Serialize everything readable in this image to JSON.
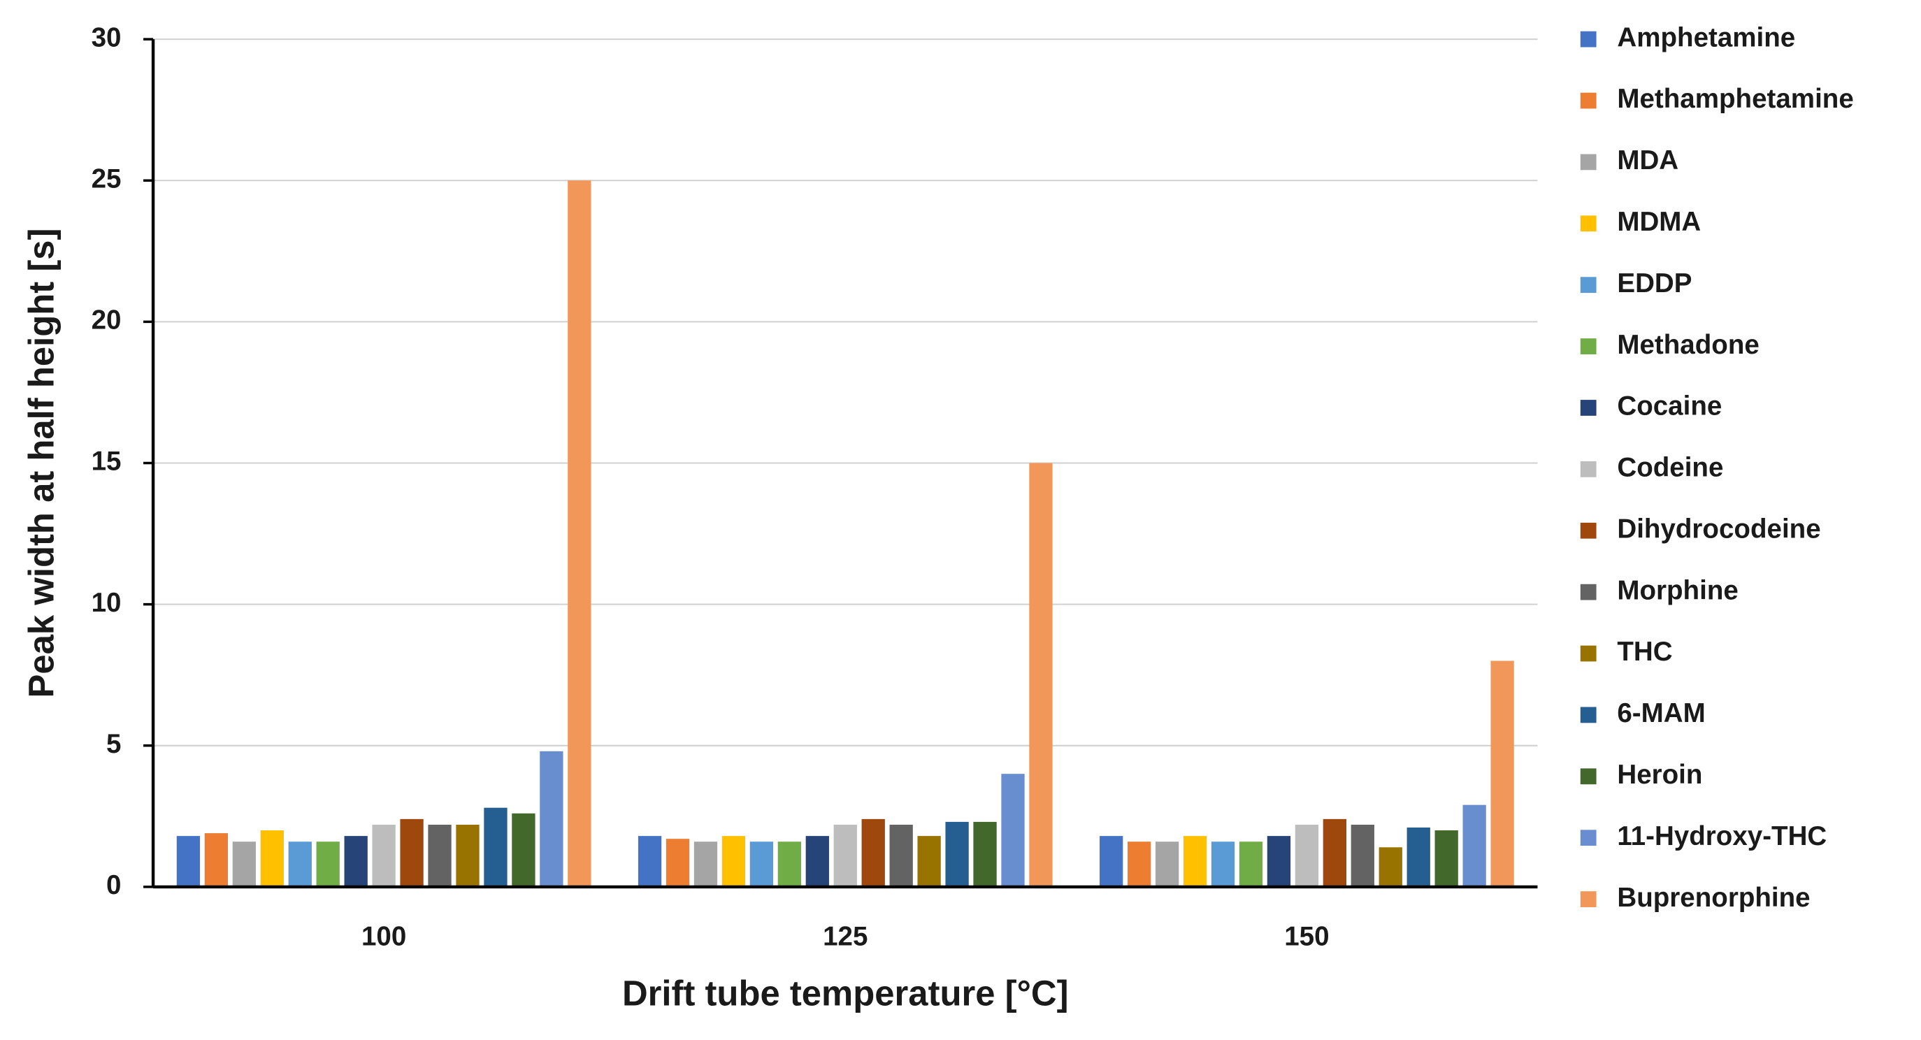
{
  "chart_data": {
    "type": "bar",
    "xlabel": "Drift tube temperature [°C]",
    "ylabel": "Peak width at half height [s]",
    "categories": [
      "100",
      "125",
      "150"
    ],
    "ylim": [
      0,
      30
    ],
    "yticks": [
      0,
      5,
      10,
      15,
      20,
      25,
      30
    ],
    "grid": true,
    "legend": "right",
    "series": [
      {
        "name": "Amphetamine",
        "color": "#4472c4",
        "values": [
          1.8,
          1.8,
          1.8
        ]
      },
      {
        "name": "Methamphetamine",
        "color": "#ed7d31",
        "values": [
          1.9,
          1.7,
          1.6
        ]
      },
      {
        "name": "MDA",
        "color": "#a5a5a5",
        "values": [
          1.6,
          1.6,
          1.6
        ]
      },
      {
        "name": "MDMA",
        "color": "#ffc000",
        "values": [
          2.0,
          1.8,
          1.8
        ]
      },
      {
        "name": "EDDP",
        "color": "#5b9bd5",
        "values": [
          1.6,
          1.6,
          1.6
        ]
      },
      {
        "name": "Methadone",
        "color": "#70ad47",
        "values": [
          1.6,
          1.6,
          1.6
        ]
      },
      {
        "name": "Cocaine",
        "color": "#264478",
        "values": [
          1.8,
          1.8,
          1.8
        ]
      },
      {
        "name": "Codeine",
        "color": "#bdbdbd",
        "values": [
          2.2,
          2.2,
          2.2
        ]
      },
      {
        "name": "Dihydrocodeine",
        "color": "#9e480e",
        "values": [
          2.4,
          2.4,
          2.4
        ]
      },
      {
        "name": "Morphine",
        "color": "#636363",
        "values": [
          2.2,
          2.2,
          2.2
        ]
      },
      {
        "name": "THC",
        "color": "#997300",
        "values": [
          2.2,
          1.8,
          1.4
        ]
      },
      {
        "name": "6-MAM",
        "color": "#255e91",
        "values": [
          2.8,
          2.3,
          2.1
        ]
      },
      {
        "name": "Heroin",
        "color": "#43682b",
        "values": [
          2.6,
          2.3,
          2.0
        ]
      },
      {
        "name": "11-Hydroxy-THC",
        "color": "#698ed0",
        "values": [
          4.8,
          4.0,
          2.9
        ]
      },
      {
        "name": "Buprenorphine",
        "color": "#f1975a",
        "values": [
          25,
          15,
          8
        ]
      }
    ]
  }
}
